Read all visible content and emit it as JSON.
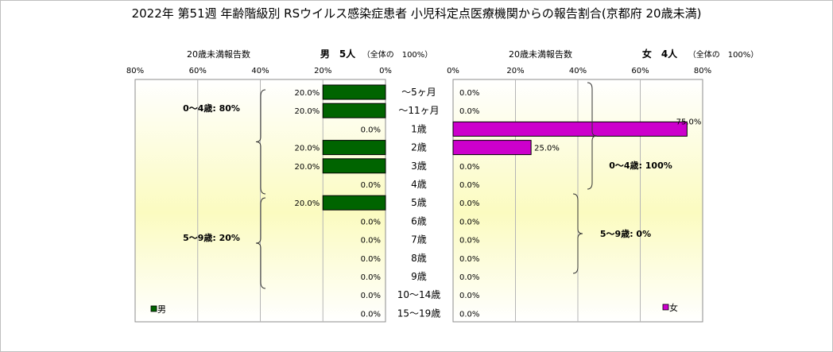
{
  "title": "2022年 第51週 年齢階級別 RSウイルス感染症患者 小児科定点医療機関からの報告割合(京都府 20歳未満)",
  "chart_data": {
    "type": "bar",
    "orientation": "horizontal-butterfly",
    "categories": [
      "～5ヶ月",
      "～11ヶ月",
      "1歳",
      "2歳",
      "3歳",
      "4歳",
      "5歳",
      "6歳",
      "7歳",
      "8歳",
      "9歳",
      "10～14歳",
      "15～19歳"
    ],
    "xlim": [
      0,
      80
    ],
    "ticks": [
      80,
      60,
      40,
      20,
      0
    ],
    "tick_labels_left": [
      "80%",
      "60%",
      "40%",
      "20%",
      "0%"
    ],
    "tick_labels_right": [
      "0%",
      "20%",
      "40%",
      "60%",
      "80%"
    ],
    "grid": true,
    "series": [
      {
        "name": "男",
        "side": "left",
        "axis_label": "20歳未満報告数",
        "header_main": "男　5人",
        "header_note": "（全体の　100%）",
        "color": "#006400",
        "values": [
          20.0,
          20.0,
          0.0,
          20.0,
          20.0,
          0.0,
          20.0,
          0.0,
          0.0,
          0.0,
          0.0,
          0.0,
          0.0
        ],
        "value_labels": [
          "20.0%",
          "20.0%",
          "0.0%",
          "20.0%",
          "20.0%",
          "0.0%",
          "20.0%",
          "0.0%",
          "0.0%",
          "0.0%",
          "0.0%",
          "0.0%",
          "0.0%"
        ],
        "legend": "男",
        "group_labels": [
          "0～4歳: 80%",
          "5～9歳: 20%"
        ]
      },
      {
        "name": "女",
        "side": "right",
        "axis_label": "20歳未満報告数",
        "header_main": "女　4人",
        "header_note": "（全体の　100%）",
        "color": "#cc00cc",
        "values": [
          0.0,
          0.0,
          75.0,
          25.0,
          0.0,
          0.0,
          0.0,
          0.0,
          0.0,
          0.0,
          0.0,
          0.0,
          0.0
        ],
        "value_labels": [
          "0.0%",
          "0.0%",
          "75.0%",
          "25.0%",
          "0.0%",
          "0.0%",
          "0.0%",
          "0.0%",
          "0.0%",
          "0.0%",
          "0.0%",
          "0.0%",
          "0.0%"
        ],
        "legend": "女",
        "group_labels": [
          "0～4歳: 100%",
          "5～9歳: 0%"
        ]
      }
    ]
  }
}
